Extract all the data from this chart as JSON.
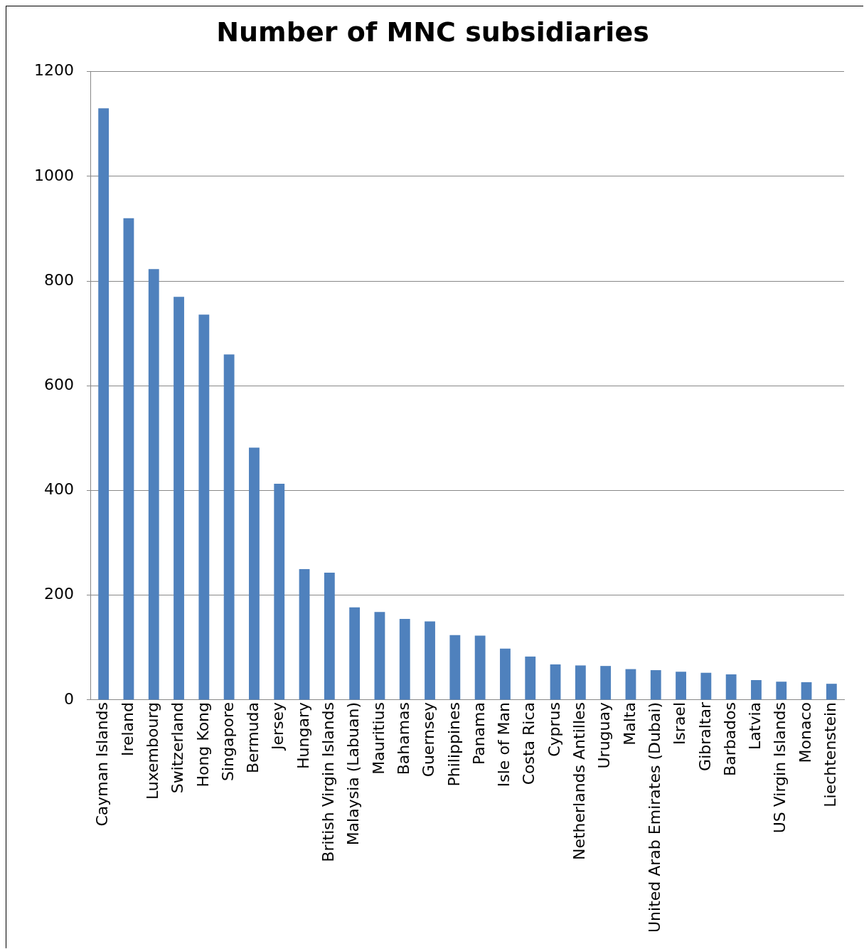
{
  "chart_data": {
    "type": "bar",
    "title": "Number of MNC subsidiaries",
    "categories": [
      "Cayman Islands",
      "Ireland",
      "Luxembourg",
      "Switzerland",
      "Hong Kong",
      "Singapore",
      "Bermuda",
      "Jersey",
      "Hungary",
      "British Virgin Islands",
      "Malaysia (Labuan)",
      "Mauritius",
      "Bahamas",
      "Guernsey",
      "Philippines",
      "Panama",
      "Isle of Man",
      "Costa Rica",
      "Cyprus",
      "Netherlands Antilles",
      "Uruguay",
      "Malta",
      "United Arab Emirates (Dubai)",
      "Israel",
      "Gibraltar",
      "Barbados",
      "Latvia",
      "US Virgin Islands",
      "Monaco",
      "Liechtenstein"
    ],
    "values": [
      1130,
      920,
      823,
      770,
      736,
      660,
      482,
      413,
      250,
      243,
      177,
      168,
      155,
      150,
      124,
      123,
      98,
      83,
      68,
      66,
      65,
      59,
      57,
      54,
      52,
      49,
      38,
      35,
      34,
      31
    ],
    "color": "#4f81bd",
    "ylim": [
      0,
      1200
    ],
    "yticks": [
      0,
      200,
      400,
      600,
      800,
      1000,
      1200
    ],
    "grid": "y",
    "legend": false
  }
}
